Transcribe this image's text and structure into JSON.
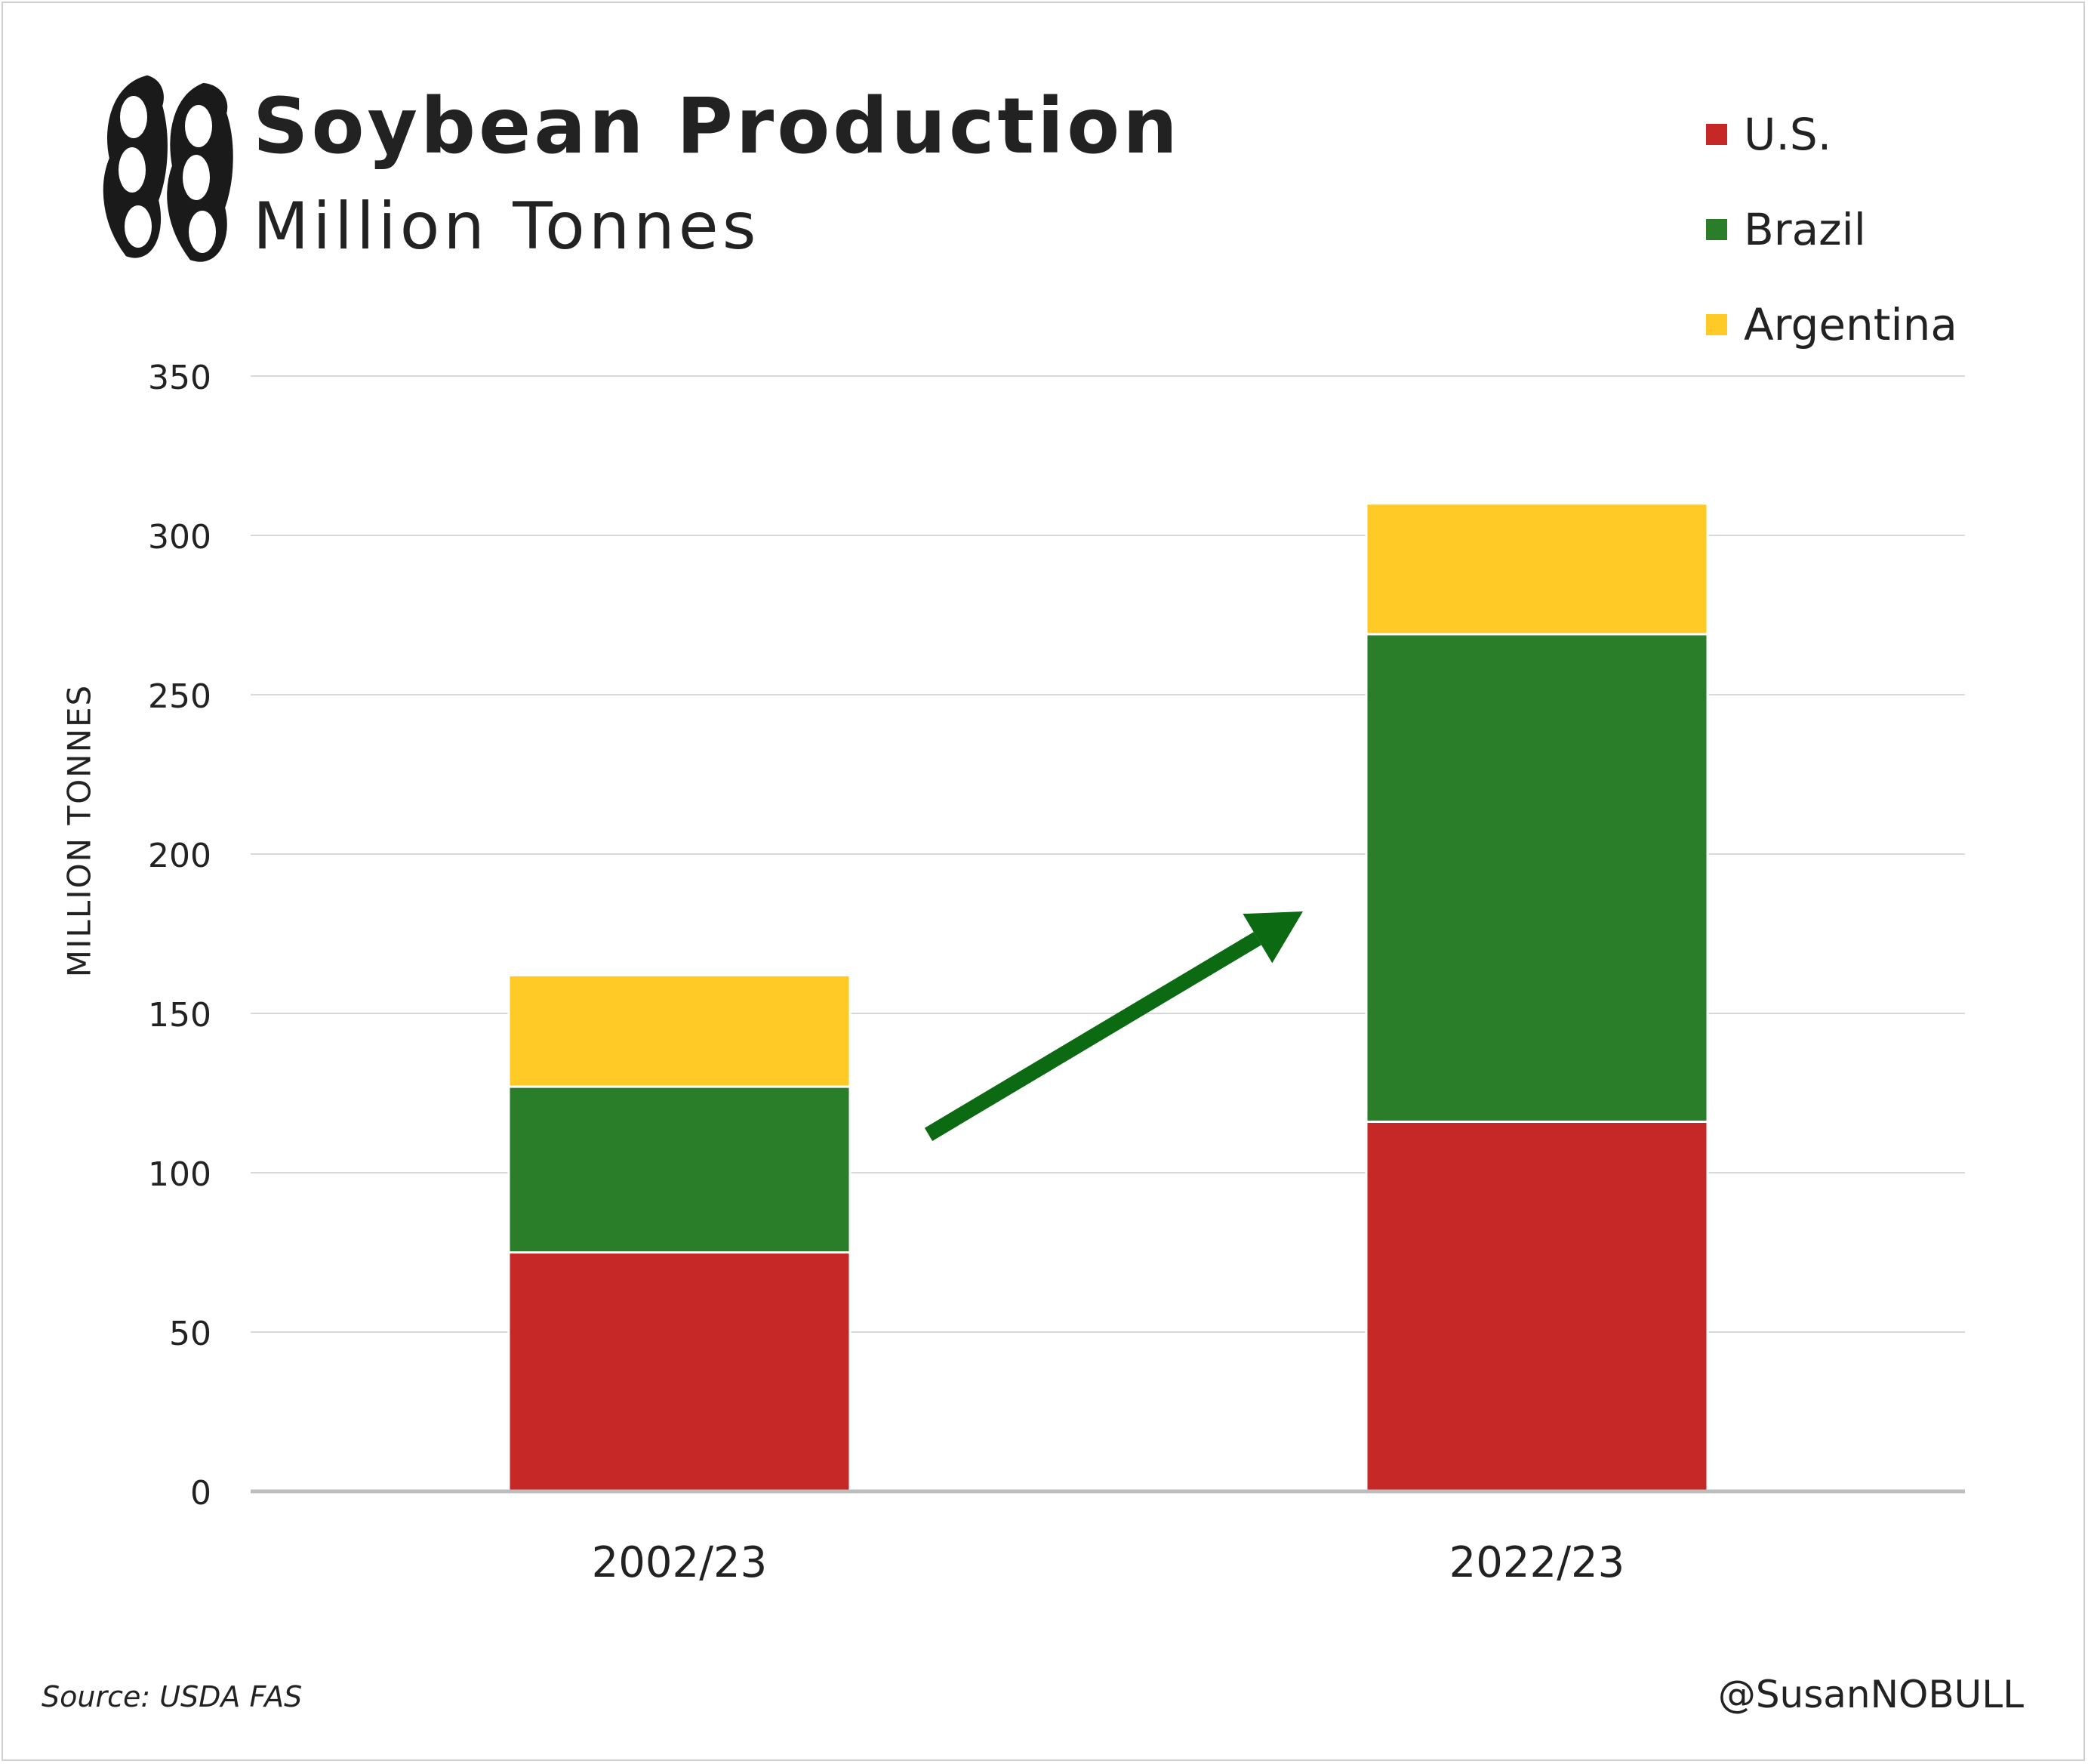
{
  "title": "Soybean Production",
  "subtitle": "Million Tonnes",
  "source": "Source: USDA FAS",
  "handle": "@SusanNOBULL",
  "icons": {
    "logo": "soybean-pod-icon"
  },
  "chart_data": {
    "type": "bar",
    "stacked": true,
    "categories": [
      "2002/23",
      "2022/23"
    ],
    "series": [
      {
        "name": "U.S.",
        "color": "#c62828",
        "values": [
          75,
          116
        ]
      },
      {
        "name": "Brazil",
        "color": "#2a7d29",
        "values": [
          52,
          153
        ]
      },
      {
        "name": "Argentina",
        "color": "#ffc926",
        "values": [
          35,
          41
        ]
      }
    ],
    "ylabel": "MILLION TONNES",
    "ylim": [
      0,
      350
    ],
    "yticks": [
      "0",
      "50",
      "100",
      "150",
      "200",
      "250",
      "300",
      "350"
    ],
    "grid": true,
    "legend": "top-right",
    "annotation": {
      "type": "arrow",
      "color": "#0b6a12",
      "from": [
        "2002/23",
        112
      ],
      "to": [
        "2022/23",
        182
      ]
    }
  }
}
